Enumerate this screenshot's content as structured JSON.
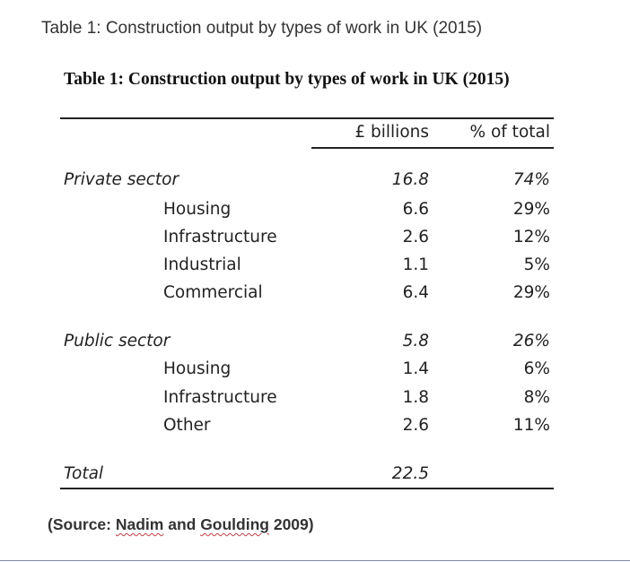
{
  "caption": "Table 1: Construction output by types of work in UK (2015)",
  "table": {
    "title": "Table 1: Construction output by types of work in UK (2015)",
    "columns": {
      "billions": "£ billions",
      "percent": "% of total"
    },
    "rows": [
      {
        "label": "Private sector",
        "billions": "16.8",
        "percent": "74%",
        "kind": "sector"
      },
      {
        "label": "Housing",
        "billions": "6.6",
        "percent": "29%",
        "kind": "sub"
      },
      {
        "label": "Infrastructure",
        "billions": "2.6",
        "percent": "12%",
        "kind": "sub"
      },
      {
        "label": "Industrial",
        "billions": "1.1",
        "percent": "5%",
        "kind": "sub"
      },
      {
        "label": "Commercial",
        "billions": "6.4",
        "percent": "29%",
        "kind": "sub"
      },
      {
        "label": "Public sector",
        "billions": "5.8",
        "percent": "26%",
        "kind": "sector"
      },
      {
        "label": "Housing",
        "billions": "1.4",
        "percent": "6%",
        "kind": "sub"
      },
      {
        "label": "Infrastructure",
        "billions": "1.8",
        "percent": "8%",
        "kind": "sub"
      },
      {
        "label": "Other",
        "billions": "2.6",
        "percent": "11%",
        "kind": "sub"
      },
      {
        "label": "Total",
        "billions": "22.5",
        "percent": "",
        "kind": "total"
      }
    ]
  },
  "source": {
    "open": "(Source: ",
    "author1": "Nadim",
    "and": " and ",
    "author2": "Goulding",
    "close": " 2009)"
  }
}
